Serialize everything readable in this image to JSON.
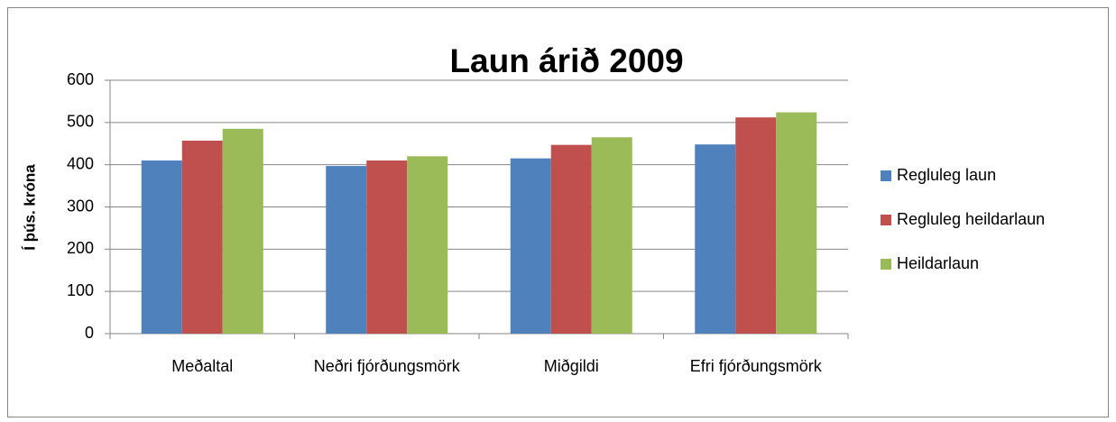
{
  "chart_data": {
    "type": "bar",
    "title": "Laun árið 2009",
    "y_label": "Í þús. króna",
    "categories": [
      "Meðaltal",
      "Neðri fjórðungsmörk",
      "Miðgildi",
      "Efri fjórðungsmörk"
    ],
    "series": [
      {
        "name": "Regluleg laun",
        "color": "#4f81bd",
        "values": [
          410,
          397,
          415,
          448
        ]
      },
      {
        "name": "Regluleg heildarlaun",
        "color": "#c0504d",
        "values": [
          457,
          410,
          447,
          512
        ]
      },
      {
        "name": "Heildarlaun",
        "color": "#9bbb59",
        "values": [
          485,
          420,
          465,
          524
        ]
      }
    ],
    "ylim": [
      0,
      600
    ],
    "yticks": [
      0,
      100,
      200,
      300,
      400,
      500,
      600
    ],
    "grid": true,
    "legend": "right"
  }
}
